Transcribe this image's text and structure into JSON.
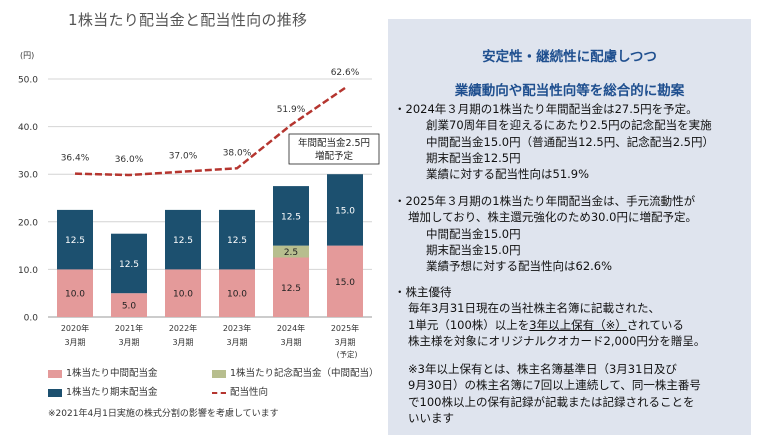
{
  "title": "1株当たり配当金と配当性向の推移",
  "chart_data": {
    "type": "bar",
    "ylabel": "(円)",
    "ylim": [
      0,
      50
    ],
    "yticks": [
      "0.0",
      "10.0",
      "20.0",
      "30.0",
      "40.0",
      "50.0"
    ],
    "categories": [
      {
        "year": "2020年",
        "month": "3月期",
        "note": ""
      },
      {
        "year": "2021年",
        "month": "3月期",
        "note": ""
      },
      {
        "year": "2022年",
        "month": "3月期",
        "note": ""
      },
      {
        "year": "2023年",
        "month": "3月期",
        "note": ""
      },
      {
        "year": "2024年",
        "month": "3月期",
        "note": ""
      },
      {
        "year": "2025年",
        "month": "3月期",
        "note": "(予定)"
      }
    ],
    "series": [
      {
        "name": "1株当たり中間配当金",
        "color": "#e49a9a",
        "values": [
          10.0,
          5.0,
          10.0,
          10.0,
          12.5,
          15.0
        ],
        "labels": [
          "10.0",
          "5.0",
          "10.0",
          "10.0",
          "12.5",
          "15.0"
        ]
      },
      {
        "name": "1株当たり記念配当金（中間配当）",
        "color": "#b7be8e",
        "values": [
          0,
          0,
          0,
          0,
          2.5,
          0
        ],
        "labels": [
          "",
          "",
          "",
          "",
          "2.5",
          ""
        ]
      },
      {
        "name": "1株当たり期末配当金",
        "color": "#1c506f",
        "values": [
          12.5,
          12.5,
          12.5,
          12.5,
          12.5,
          15.0
        ],
        "labels": [
          "12.5",
          "12.5",
          "12.5",
          "12.5",
          "12.5",
          "15.0"
        ]
      }
    ],
    "payout": {
      "name": "配当性向",
      "color": "#b5352f",
      "values": [
        36.4,
        36.0,
        37.0,
        38.0,
        51.9,
        62.6
      ],
      "labels": [
        "36.4%",
        "36.0%",
        "37.0%",
        "38.0%",
        "51.9%",
        "62.6%"
      ]
    },
    "callout": {
      "line1": "年間配当金2.5円",
      "line2": "増配予定"
    }
  },
  "note": "※2021年4月1日実施の株式分割の影響を考慮しています",
  "panel": {
    "heading1": "安定性・継続性に配慮しつつ",
    "heading2": "業績動向や配当性向等を総合的に勘案",
    "s1": {
      "main": "・2024年３月期の1株当たり年間配当金は27.5円を予定。",
      "l1": "創業70周年目を迎えるにあたり2.5円の記念配当を実施",
      "l2": "中間配当金15.0円（普通配当12.5円、記念配当2.5円）",
      "l3": "期末配当金12.5円",
      "l4": "業績に対する配当性向は51.9%"
    },
    "s2": {
      "main1": "・2025年３月期の1株当たり年間配当金は、手元流動性が",
      "main2": "増加しており、株主還元強化のため30.0円に増配予定。",
      "l1": "中間配当金15.0円",
      "l2": "期末配当金15.0円",
      "l3": "業績予想に対する配当性向は62.6%"
    },
    "s3": {
      "head": "・株主優待",
      "l1": "毎年3月31日現在の当社株主名簿に記載された、",
      "l2a": "1単元（100株）以上を",
      "l2b": "3年以上保有（※）",
      "l2c": "されている",
      "l3": "株主様を対象にオリジナルクオカード2,000円分を贈呈。"
    },
    "s4": {
      "l1": "※3年以上保有とは、株主名簿基準日（3月31日及び",
      "l2": "9月30日）の株主名簿に7回以上連続して、同一株主番号",
      "l3": "で100株以上の保有記録が記載または記録されることを",
      "l4": "いいます"
    }
  }
}
